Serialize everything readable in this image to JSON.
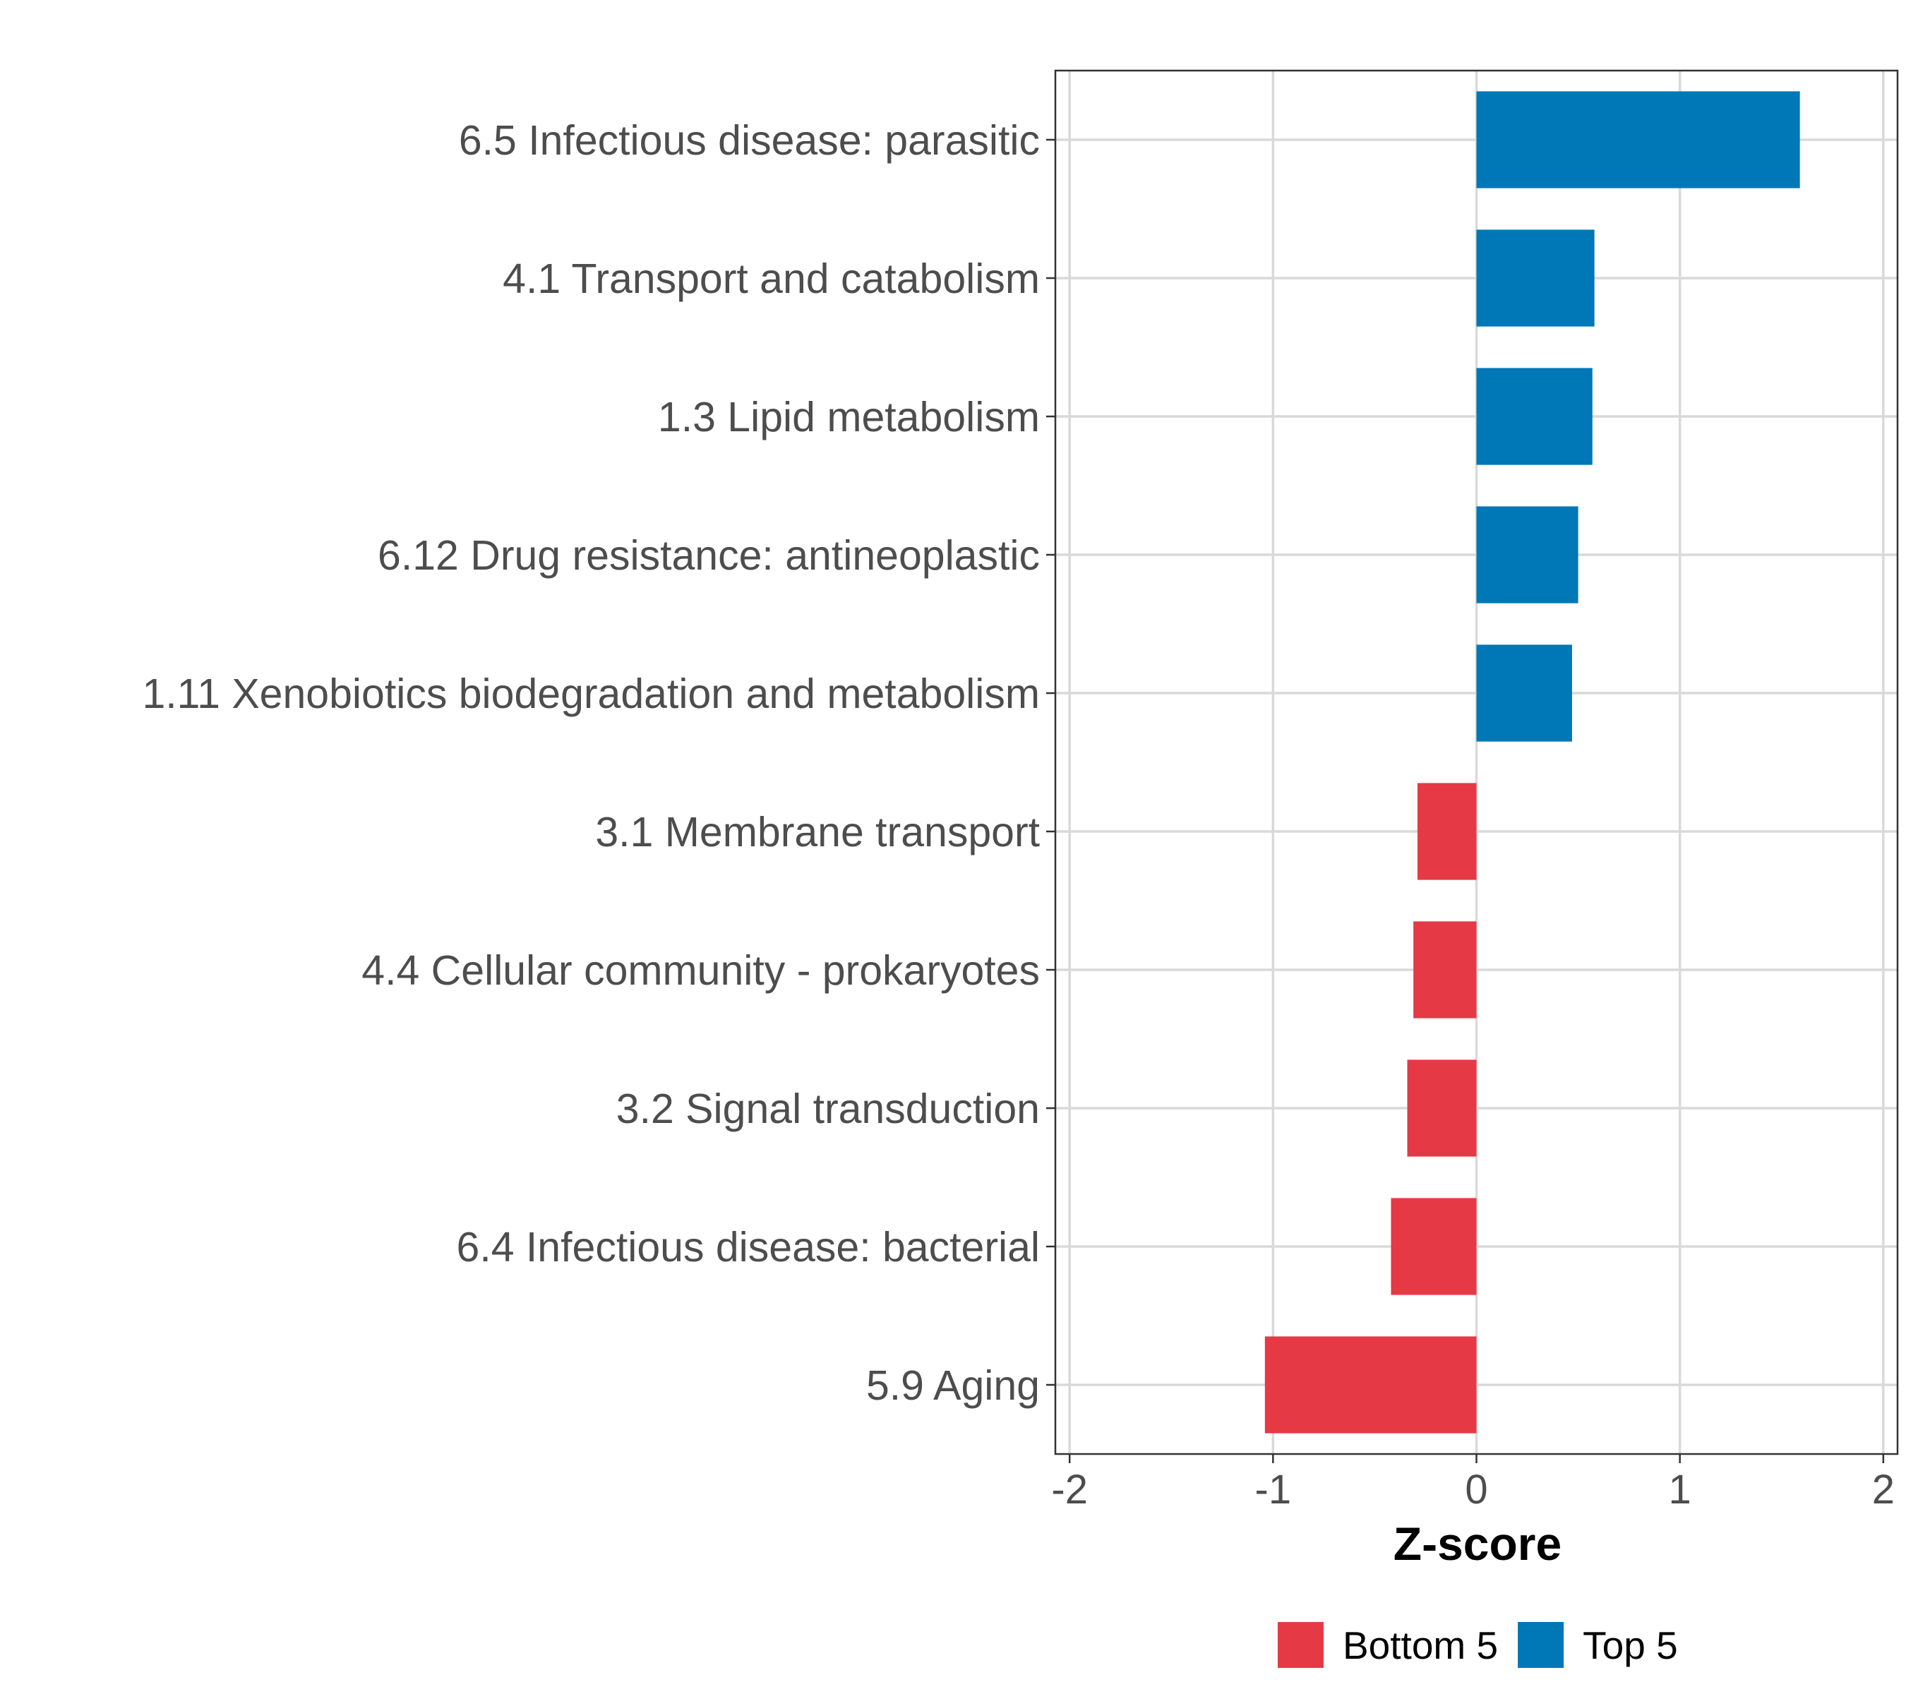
{
  "chart_data": {
    "type": "bar",
    "orientation": "horizontal",
    "categories": [
      "6.5 Infectious disease: parasitic",
      "4.1 Transport and catabolism",
      "1.3 Lipid metabolism",
      "6.12 Drug resistance: antineoplastic",
      "1.11 Xenobiotics biodegradation and metabolism",
      "3.1 Membrane transport",
      "4.4 Cellular community - prokaryotes",
      "3.2 Signal transduction",
      "6.4 Infectious disease: bacterial",
      "5.9 Aging"
    ],
    "values": [
      1.59,
      0.58,
      0.57,
      0.5,
      0.47,
      -0.29,
      -0.31,
      -0.34,
      -0.42,
      -1.04
    ],
    "groups": [
      "Top 5",
      "Top 5",
      "Top 5",
      "Top 5",
      "Top 5",
      "Bottom 5",
      "Bottom 5",
      "Bottom 5",
      "Bottom 5",
      "Bottom 5"
    ],
    "xlabel": "Z-score",
    "ylabel": "",
    "xlim": [
      -2.07,
      2.07
    ],
    "xticks": [
      -2,
      -1,
      0,
      1,
      2
    ],
    "xtick_labels": [
      "-2",
      "-1",
      "0",
      "1",
      "2"
    ],
    "grid": true,
    "legend": {
      "position": "bottom",
      "entries": [
        {
          "label": "Bottom 5",
          "color": "#E63946"
        },
        {
          "label": "Top 5",
          "color": "#0077B6"
        }
      ]
    },
    "colors": {
      "Top 5": "#0077B6",
      "Bottom 5": "#E63946"
    }
  }
}
